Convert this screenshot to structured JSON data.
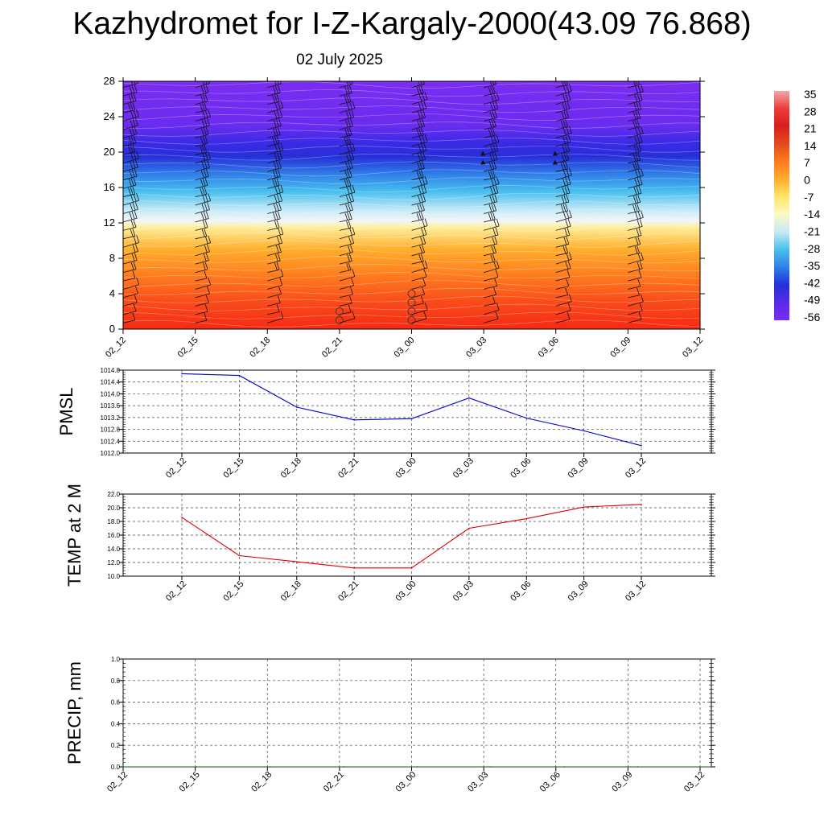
{
  "title": "Kazhydromet for I-Z-Kargaly-2000(43.09 76.868)",
  "subtitle": "02 July 2025",
  "time_labels": [
    "02_12",
    "02_15",
    "02_18",
    "02_21",
    "03_00",
    "03_03",
    "03_06",
    "03_09",
    "03_12"
  ],
  "chart_data": [
    {
      "type": "heatmap",
      "name": "upper-air-temperature",
      "ylim": [
        0,
        28
      ],
      "y_ticks": [
        0,
        4,
        8,
        12,
        16,
        20,
        24,
        28
      ],
      "colorbar_labels": [
        "35",
        "28",
        "21",
        "14",
        "7",
        "0",
        "-7",
        "-14",
        "-21",
        "-28",
        "-35",
        "-42",
        "-49",
        "-56"
      ],
      "color_stops": [
        {
          "level": 0,
          "color": "#f52a14"
        },
        {
          "level": 3,
          "color": "#fa4a1a"
        },
        {
          "level": 6,
          "color": "#ff7b1e"
        },
        {
          "level": 9,
          "color": "#ffae2c"
        },
        {
          "level": 11.5,
          "color": "#ffee9a"
        },
        {
          "level": 12.2,
          "color": "#f4f6f8"
        },
        {
          "level": 13.5,
          "color": "#c6e9f5"
        },
        {
          "level": 15.5,
          "color": "#49c0ee"
        },
        {
          "level": 17.5,
          "color": "#2f7fe8"
        },
        {
          "level": 19.5,
          "color": "#2530d8"
        },
        {
          "level": 21,
          "color": "#3a2ae6"
        },
        {
          "level": 23,
          "color": "#6a2cef"
        },
        {
          "level": 28,
          "color": "#7b2cf2"
        }
      ]
    },
    {
      "type": "line",
      "name": "pmsl",
      "ylabel": "PMSL",
      "ylim": [
        1012.0,
        1014.8
      ],
      "y_ticks": [
        "1012.0",
        "1012.4",
        "1012.8",
        "1013.2",
        "1013.6",
        "1014.0",
        "1014.4",
        "1014.8"
      ],
      "categories": [
        "02_12",
        "02_15",
        "02_18",
        "02_21",
        "03_00",
        "03_03",
        "03_06",
        "03_09",
        "03_12"
      ],
      "values": [
        1014.68,
        1014.62,
        1013.55,
        1013.12,
        1013.16,
        1013.86,
        1013.18,
        1012.75,
        1012.25
      ],
      "color": "#0000cc"
    },
    {
      "type": "line",
      "name": "temp-2m",
      "ylabel": "TEMP at 2 M",
      "ylim": [
        10.0,
        22.0
      ],
      "y_ticks": [
        "10.0",
        "12.0",
        "14.0",
        "16.0",
        "18.0",
        "20.0",
        "22.0"
      ],
      "categories": [
        "02_12",
        "02_15",
        "02_18",
        "02_21",
        "03_00",
        "03_03",
        "03_06",
        "03_09",
        "03_12"
      ],
      "values": [
        18.6,
        13.0,
        12.1,
        11.2,
        11.2,
        17.0,
        18.4,
        20.1,
        20.5
      ],
      "color": "#dd0000"
    },
    {
      "type": "line",
      "name": "precip",
      "ylabel": "PRECIP, mm",
      "ylim": [
        0.0,
        1.0
      ],
      "y_ticks": [
        "0.0",
        "0.2",
        "0.4",
        "0.6",
        "0.8",
        "1.0"
      ],
      "categories": [
        "02_12",
        "02_15",
        "02_18",
        "02_21",
        "03_00",
        "03_03",
        "03_06",
        "03_09",
        "03_12"
      ],
      "values": [
        0,
        0,
        0,
        0,
        0,
        0,
        0,
        0,
        0
      ],
      "color": "#006600"
    }
  ]
}
